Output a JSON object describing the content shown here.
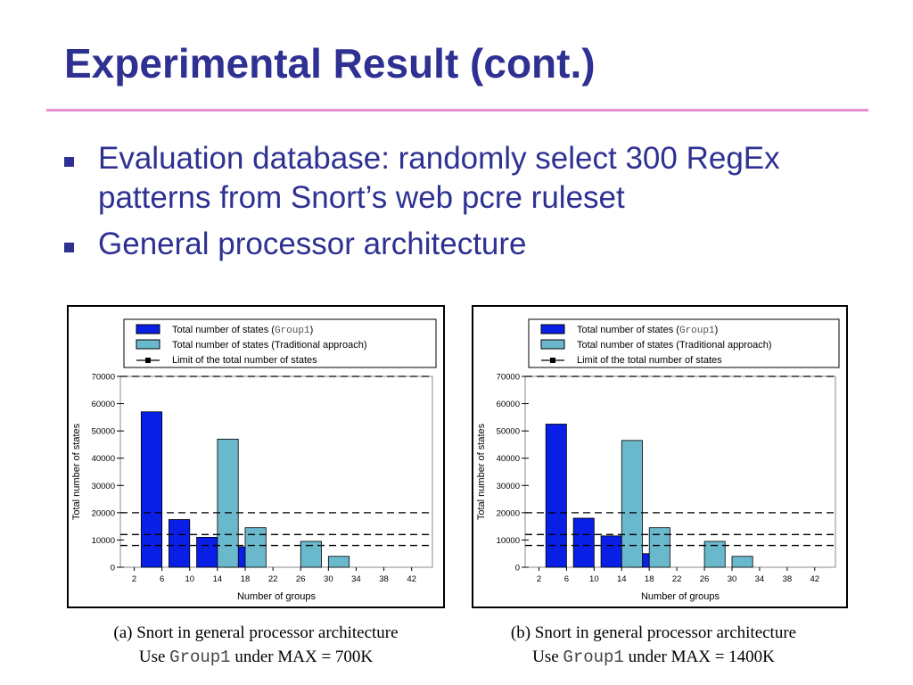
{
  "slide": {
    "title": "Experimental Result (cont.)",
    "bullets": [
      "Evaluation database: randomly select 300 RegEx patterns from Snort’s web pcre ruleset",
      "General processor architecture"
    ]
  },
  "colors": {
    "title": "#2e3192",
    "rule": "#e58fd0",
    "group1": "#0a1fe6",
    "traditional": "#6ab8cc"
  },
  "chart_data": [
    {
      "type": "bar",
      "title": "",
      "xlabel": "Number of groups",
      "ylabel": "Total number of states",
      "xticks": [
        "2",
        "6",
        "10",
        "14",
        "18",
        "22",
        "26",
        "30",
        "34",
        "38",
        "42"
      ],
      "xlim": [
        0,
        45
      ],
      "ylim": [
        0,
        70000
      ],
      "yticks": [
        "0",
        "10000",
        "20000",
        "30000",
        "40000",
        "50000",
        "60000",
        "70000"
      ],
      "legend": {
        "placement": "top",
        "group1_prefix": "Total number of states (",
        "group1_code": "Group1",
        "group1_suffix": ")",
        "traditional": "Total number of states (Traditional approach)",
        "limit": "Limit of the total number of states"
      },
      "series": [
        {
          "x": [
            6,
            10,
            14,
            18
          ],
          "values": [
            57000,
            17500,
            11000,
            7500
          ]
        },
        {
          "x": [
            14,
            18,
            26,
            30
          ],
          "values": [
            47000,
            14500,
            9500,
            4000
          ]
        }
      ],
      "limit_lines": [
        70000,
        20000,
        12000,
        8000
      ],
      "caption_line1": "(a) Snort in general processor architecture",
      "caption_use": "Use",
      "caption_code": "Group1",
      "caption_rest": "under MAX = 700K"
    },
    {
      "type": "bar",
      "title": "",
      "xlabel": "Number of groups",
      "ylabel": "Total number of states",
      "xticks": [
        "2",
        "6",
        "10",
        "14",
        "18",
        "22",
        "26",
        "30",
        "34",
        "38",
        "42"
      ],
      "xlim": [
        0,
        45
      ],
      "ylim": [
        0,
        70000
      ],
      "yticks": [
        "0",
        "10000",
        "20000",
        "30000",
        "40000",
        "50000",
        "60000",
        "70000"
      ],
      "legend": {
        "placement": "top",
        "group1_prefix": "Total number of states (",
        "group1_code": "Group1",
        "group1_suffix": ")",
        "traditional": "Total number of states (Traditional approach)",
        "limit": "Limit of the total number of states"
      },
      "series": [
        {
          "x": [
            6,
            10,
            14,
            18
          ],
          "values": [
            52500,
            18000,
            11500,
            5000
          ]
        },
        {
          "x": [
            14,
            18,
            26,
            30
          ],
          "values": [
            46500,
            14500,
            9500,
            4000
          ]
        }
      ],
      "limit_lines": [
        70000,
        20000,
        12000,
        8000
      ],
      "caption_line1": "(b) Snort in general processor architecture",
      "caption_use": "Use",
      "caption_code": "Group1",
      "caption_rest": "under  MAX = 1400K"
    }
  ]
}
